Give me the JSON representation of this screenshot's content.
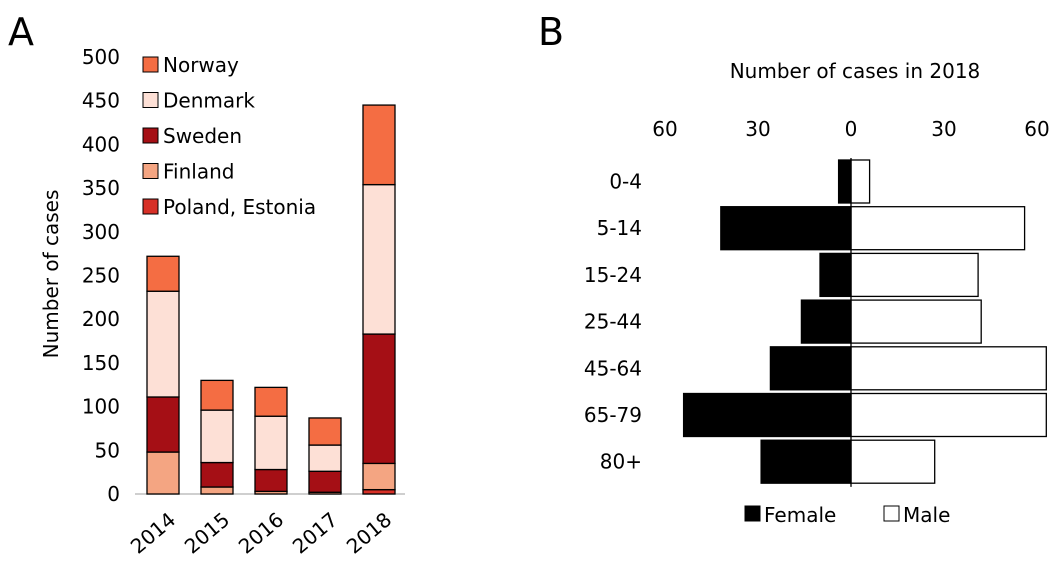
{
  "panels": {
    "a_letter": "A",
    "b_letter": "B"
  },
  "chart_data": [
    {
      "type": "bar",
      "stacked": true,
      "categories": [
        "2014",
        "2015",
        "2016",
        "2017",
        "2018"
      ],
      "ylabel": "Number of cases",
      "xlabel": "",
      "ylim": [
        0,
        500
      ],
      "yticks": [
        "0",
        "50",
        "100",
        "150",
        "200",
        "250",
        "300",
        "350",
        "400",
        "450",
        "500"
      ],
      "legend_position": "top-left",
      "legend_order": [
        "Norway",
        "Denmark",
        "Sweden",
        "Finland",
        "Poland, Estonia"
      ],
      "series": [
        {
          "name": "Poland, Estonia",
          "color": "#d73027",
          "values": [
            0,
            0,
            0,
            0,
            5
          ]
        },
        {
          "name": "Finland",
          "color": "#f4a582",
          "values": [
            48,
            8,
            3,
            2,
            30
          ]
        },
        {
          "name": "Sweden",
          "color": "#a50f15",
          "values": [
            63,
            28,
            25,
            24,
            148
          ]
        },
        {
          "name": "Denmark",
          "color": "#fde0d6",
          "values": [
            121,
            60,
            61,
            30,
            171
          ]
        },
        {
          "name": "Norway",
          "color": "#f46d43",
          "values": [
            40,
            34,
            33,
            31,
            91
          ]
        }
      ]
    },
    {
      "type": "bar",
      "orientation": "horizontal",
      "title": "Number of cases in 2018",
      "categories": [
        "0-4",
        "5-14",
        "15-24",
        "25-44",
        "45-64",
        "65-79",
        "80+"
      ],
      "xticks": [
        "60",
        "30",
        "0",
        "30",
        "60"
      ],
      "xlim": [
        -60,
        60
      ],
      "legend_position": "bottom",
      "series": [
        {
          "name": "Female",
          "color": "#000000",
          "values": [
            4,
            42,
            10,
            16,
            26,
            54,
            29
          ]
        },
        {
          "name": "Male",
          "color": "#ffffff",
          "values": [
            6,
            56,
            41,
            42,
            63,
            63,
            27
          ]
        }
      ]
    }
  ]
}
